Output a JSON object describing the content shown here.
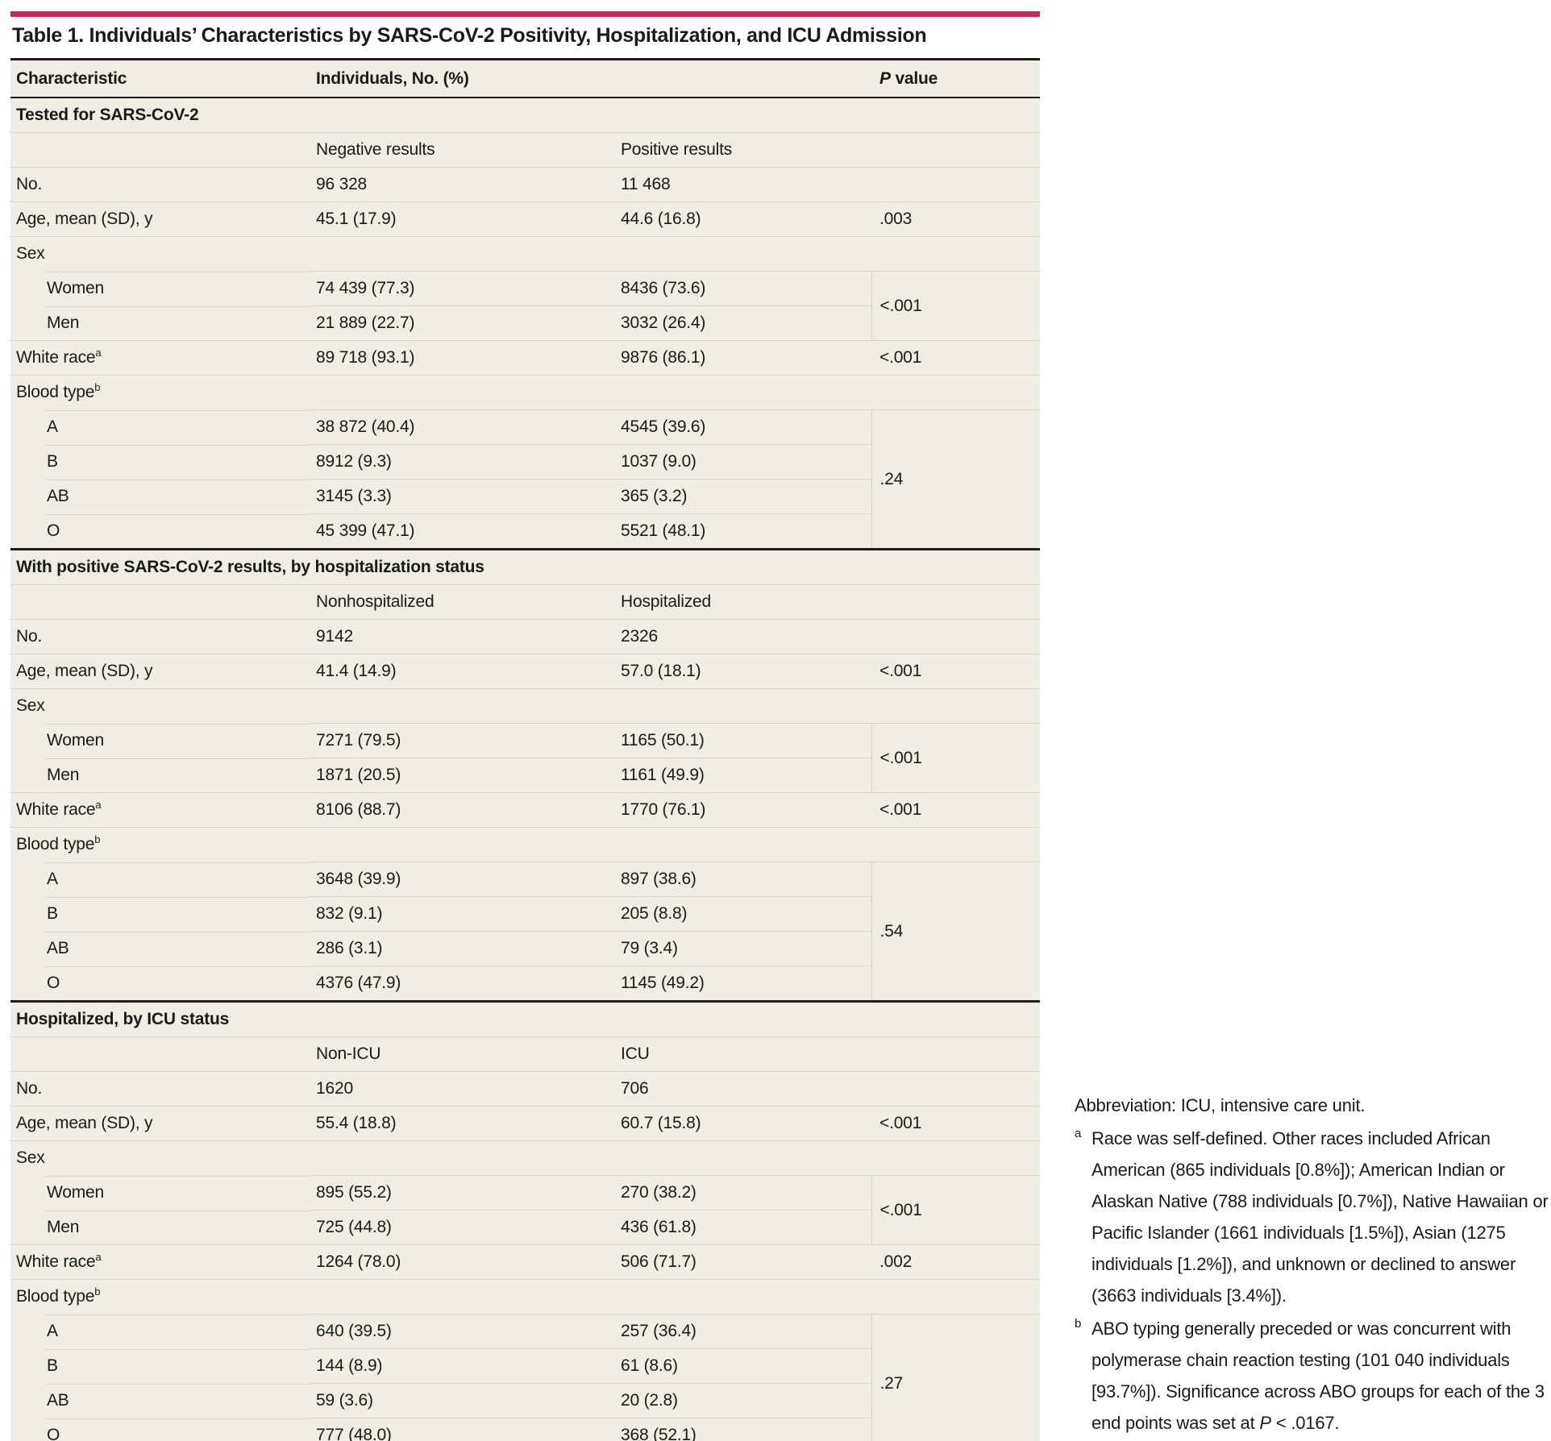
{
  "colors": {
    "accent_bar": "#C2275F",
    "table_bg": "#F0EDE2",
    "rule": "#1A1A1A",
    "row_line": "#D5D1C3",
    "text": "#1A1A1A"
  },
  "title": "Table 1. Individuals’ Characteristics by SARS-CoV-2 Positivity, Hospitalization, and ICU Admission",
  "header": {
    "characteristic": "Characteristic",
    "individuals": "Individuals, No. (%)",
    "p_em": "P",
    "p_rest": " value"
  },
  "sections": [
    {
      "title": "Tested for SARS-CoV-2",
      "col_a": "Negative results",
      "col_b": "Positive results",
      "rows": [
        {
          "kind": "data",
          "label": "No.",
          "a": "96 328",
          "b": "11 468",
          "p": ""
        },
        {
          "kind": "data",
          "label": "Age, mean (SD), y",
          "a": "45.1 (17.9)",
          "b": "44.6 (16.8)",
          "p": ".003"
        },
        {
          "kind": "group",
          "label": "Sex"
        },
        {
          "kind": "sub",
          "label": "Women",
          "a": "74 439 (77.3)",
          "b": "8436 (73.6)",
          "p": "<.001",
          "pspan": 2
        },
        {
          "kind": "sub",
          "label": "Men",
          "a": "21 889 (22.7)",
          "b": "3032 (26.4)"
        },
        {
          "kind": "data",
          "label": "White race",
          "sup": "a",
          "a": "89 718 (93.1)",
          "b": "9876 (86.1)",
          "p": "<.001"
        },
        {
          "kind": "group",
          "label": "Blood type",
          "sup": "b"
        },
        {
          "kind": "sub",
          "label": "A",
          "a": "38 872 (40.4)",
          "b": "4545 (39.6)",
          "p": ".24",
          "pspan": 4
        },
        {
          "kind": "sub",
          "label": "B",
          "a": "8912 (9.3)",
          "b": "1037 (9.0)"
        },
        {
          "kind": "sub",
          "label": "AB",
          "a": "3145 (3.3)",
          "b": "365 (3.2)"
        },
        {
          "kind": "sub",
          "label": "O",
          "a": "45 399 (47.1)",
          "b": "5521 (48.1)"
        }
      ]
    },
    {
      "title": "With positive SARS-CoV-2 results, by hospitalization status",
      "col_a": "Nonhospitalized",
      "col_b": "Hospitalized",
      "rows": [
        {
          "kind": "data",
          "label": "No.",
          "a": "9142",
          "b": "2326",
          "p": ""
        },
        {
          "kind": "data",
          "label": "Age, mean (SD), y",
          "a": "41.4 (14.9)",
          "b": "57.0 (18.1)",
          "p": "<.001"
        },
        {
          "kind": "group",
          "label": "Sex"
        },
        {
          "kind": "sub",
          "label": "Women",
          "a": "7271 (79.5)",
          "b": "1165 (50.1)",
          "p": "<.001",
          "pspan": 2
        },
        {
          "kind": "sub",
          "label": "Men",
          "a": "1871 (20.5)",
          "b": "1161 (49.9)"
        },
        {
          "kind": "data",
          "label": "White race",
          "sup": "a",
          "a": "8106 (88.7)",
          "b": "1770 (76.1)",
          "p": "<.001"
        },
        {
          "kind": "group",
          "label": "Blood type",
          "sup": "b"
        },
        {
          "kind": "sub",
          "label": "A",
          "a": "3648 (39.9)",
          "b": "897 (38.6)",
          "p": ".54",
          "pspan": 4
        },
        {
          "kind": "sub",
          "label": "B",
          "a": "832 (9.1)",
          "b": "205 (8.8)"
        },
        {
          "kind": "sub",
          "label": "AB",
          "a": "286 (3.1)",
          "b": "79 (3.4)"
        },
        {
          "kind": "sub",
          "label": "O",
          "a": "4376 (47.9)",
          "b": "1145 (49.2)"
        }
      ]
    },
    {
      "title": "Hospitalized, by ICU status",
      "col_a": "Non-ICU",
      "col_b": "ICU",
      "rows": [
        {
          "kind": "data",
          "label": "No.",
          "a": "1620",
          "b": "706",
          "p": ""
        },
        {
          "kind": "data",
          "label": "Age, mean (SD), y",
          "a": "55.4 (18.8)",
          "b": "60.7 (15.8)",
          "p": "<.001"
        },
        {
          "kind": "group",
          "label": "Sex"
        },
        {
          "kind": "sub",
          "label": "Women",
          "a": "895 (55.2)",
          "b": "270 (38.2)",
          "p": "<.001",
          "pspan": 2
        },
        {
          "kind": "sub",
          "label": "Men",
          "a": "725 (44.8)",
          "b": "436 (61.8)"
        },
        {
          "kind": "data",
          "label": "White race",
          "sup": "a",
          "a": "1264 (78.0)",
          "b": "506 (71.7)",
          "p": ".002"
        },
        {
          "kind": "group",
          "label": "Blood type",
          "sup": "b"
        },
        {
          "kind": "sub",
          "label": "A",
          "a": "640 (39.5)",
          "b": "257 (36.4)",
          "p": ".27",
          "pspan": 4
        },
        {
          "kind": "sub",
          "label": "B",
          "a": "144 (8.9)",
          "b": "61 (8.6)"
        },
        {
          "kind": "sub",
          "label": "AB",
          "a": "59 (3.6)",
          "b": "20 (2.8)"
        },
        {
          "kind": "sub",
          "label": "O",
          "a": "777 (48.0)",
          "b": "368 (52.1)"
        }
      ]
    }
  ],
  "footnotes": [
    {
      "marker": "",
      "text": "Abbreviation: ICU, intensive care unit."
    },
    {
      "marker": "a",
      "text": "Race was self-defined. Other races included African American (865 individuals [0.8%]); American Indian or Alaskan Native (788 individuals [0.7%]), Native Hawaiian or Pacific Islander (1661 individuals [1.5%]), Asian (1275 individuals [1.2%]), and unknown or declined to answer (3663 individuals [3.4%])."
    },
    {
      "marker": "b",
      "text": "ABO typing generally preceded or was concurrent with polymerase chain reaction testing (101 040 individuals [93.7%]). Significance across ABO groups for each of the 3 end points was set at P < .0167."
    }
  ]
}
